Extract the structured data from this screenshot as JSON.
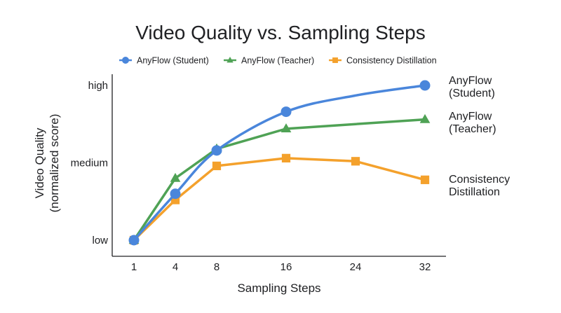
{
  "chart_data": {
    "type": "line",
    "title": "Video Quality vs. Sampling Steps",
    "xlabel": "Sampling Steps",
    "ylabel": [
      "Video Quality",
      "(normalized score)"
    ],
    "x": [
      1,
      4,
      8,
      16,
      24,
      32
    ],
    "x_ticks": [
      "1",
      "4",
      "8",
      "16",
      "24",
      "32"
    ],
    "y_ticks": [
      {
        "value": 0.0,
        "label": "low"
      },
      {
        "value": 0.5,
        "label": "medium"
      },
      {
        "value": 1.0,
        "label": "high"
      }
    ],
    "ylim": [
      0,
      1
    ],
    "grid": false,
    "legend_position": "top",
    "series": [
      {
        "name": "AnyFlow (Student)",
        "end_label": [
          "AnyFlow",
          "(Student)"
        ],
        "color": "#4A86DB",
        "marker": "circle",
        "x": [
          1,
          4,
          8,
          16,
          32
        ],
        "values": [
          0.0,
          0.3,
          0.58,
          0.83,
          1.0
        ],
        "smooth_extra": [
          {
            "x": 24,
            "y": 0.935
          }
        ]
      },
      {
        "name": "AnyFlow (Teacher)",
        "end_label": [
          "AnyFlow",
          "(Teacher)"
        ],
        "color": "#4FA255",
        "marker": "triangle",
        "x": [
          1,
          4,
          8,
          16,
          32
        ],
        "values": [
          0.0,
          0.4,
          0.59,
          0.72,
          0.78
        ]
      },
      {
        "name": "Consistency Distillation",
        "end_label": [
          "Consistency",
          "Distillation"
        ],
        "color": "#F4A12C",
        "marker": "square",
        "x": [
          1,
          4,
          8,
          16,
          24,
          32
        ],
        "values": [
          0.0,
          0.26,
          0.48,
          0.53,
          0.51,
          0.39
        ]
      }
    ]
  }
}
